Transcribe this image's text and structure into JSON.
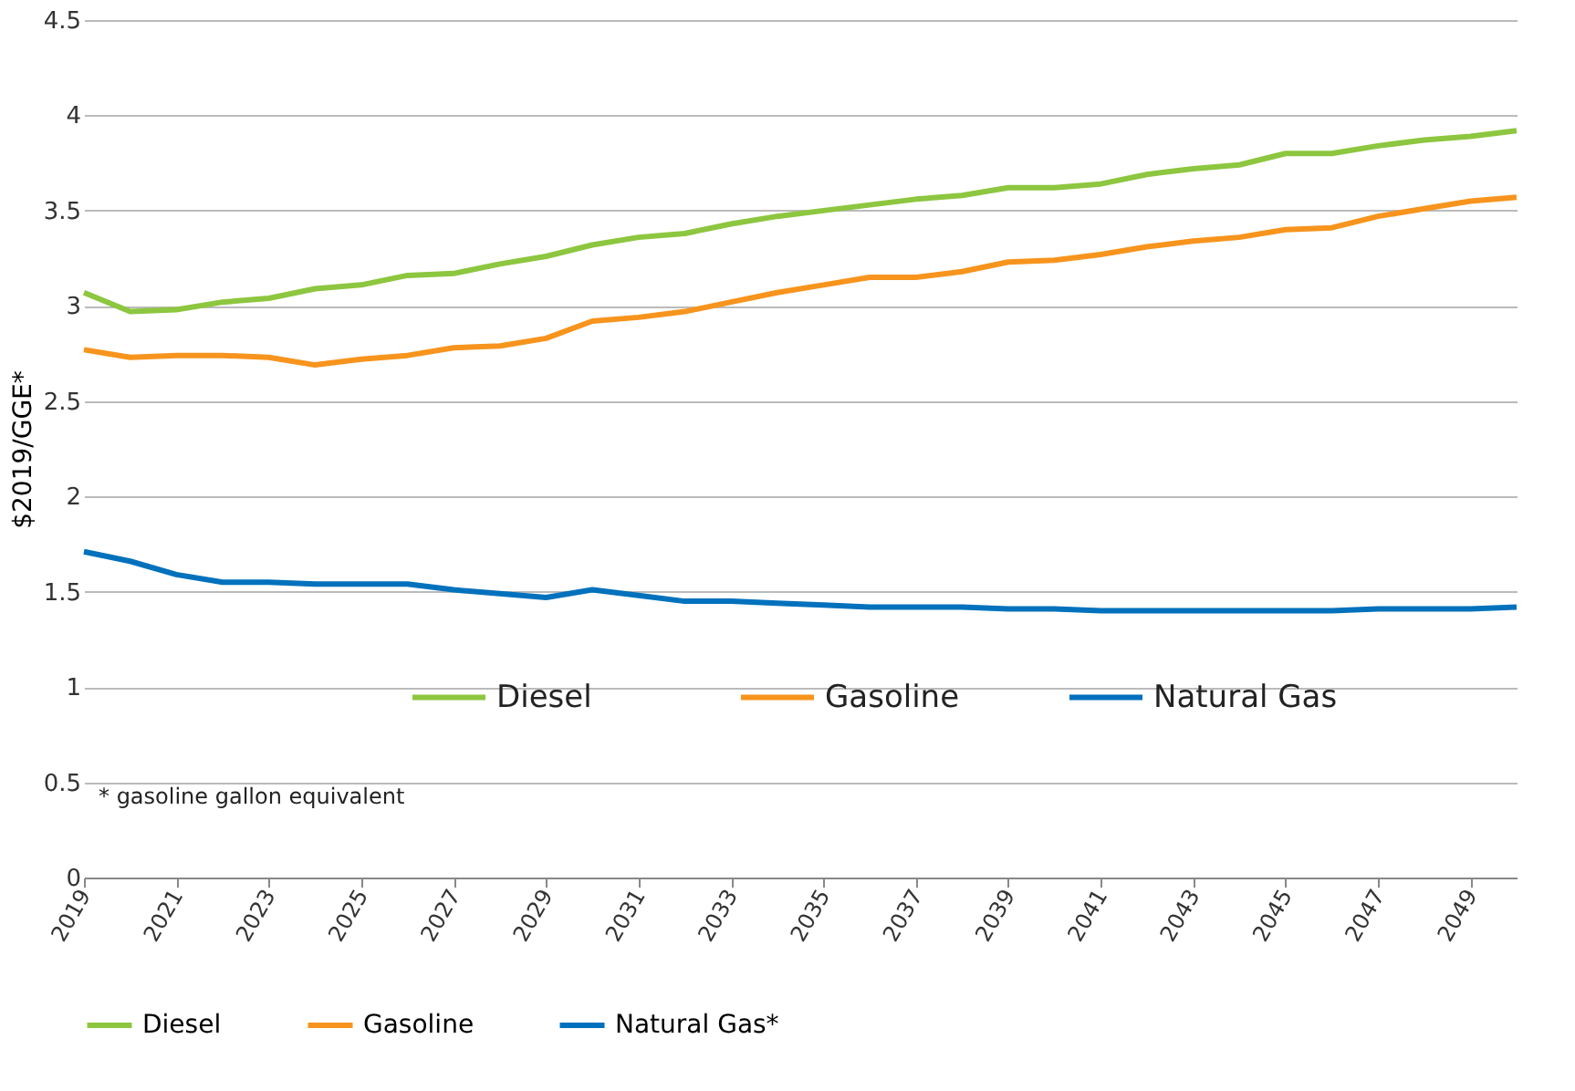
{
  "chart_data": {
    "type": "line",
    "ylabel": "$2019/GGE*",
    "x": [
      2019,
      2020,
      2021,
      2022,
      2023,
      2024,
      2025,
      2026,
      2027,
      2028,
      2029,
      2030,
      2031,
      2032,
      2033,
      2034,
      2035,
      2036,
      2037,
      2038,
      2039,
      2040,
      2041,
      2042,
      2043,
      2044,
      2045,
      2046,
      2047,
      2048,
      2049,
      2050
    ],
    "series": [
      {
        "name": "Diesel",
        "color": "#8dc63f",
        "values": [
          3.07,
          2.97,
          2.98,
          3.02,
          3.04,
          3.09,
          3.11,
          3.16,
          3.17,
          3.22,
          3.26,
          3.32,
          3.36,
          3.38,
          3.43,
          3.47,
          3.5,
          3.53,
          3.56,
          3.58,
          3.62,
          3.62,
          3.64,
          3.69,
          3.72,
          3.74,
          3.8,
          3.8,
          3.84,
          3.87,
          3.89,
          3.92
        ]
      },
      {
        "name": "Gasoline",
        "color": "#f7941d",
        "values": [
          2.77,
          2.73,
          2.74,
          2.74,
          2.73,
          2.69,
          2.72,
          2.74,
          2.78,
          2.79,
          2.83,
          2.92,
          2.94,
          2.97,
          3.02,
          3.07,
          3.11,
          3.15,
          3.15,
          3.18,
          3.23,
          3.24,
          3.27,
          3.31,
          3.34,
          3.36,
          3.4,
          3.41,
          3.47,
          3.51,
          3.55,
          3.57
        ]
      },
      {
        "name": "Natural Gas*",
        "color": "#0071bc",
        "values": [
          1.71,
          1.66,
          1.59,
          1.55,
          1.55,
          1.54,
          1.54,
          1.54,
          1.51,
          1.49,
          1.47,
          1.51,
          1.48,
          1.45,
          1.45,
          1.44,
          1.43,
          1.42,
          1.42,
          1.42,
          1.41,
          1.41,
          1.4,
          1.4,
          1.4,
          1.4,
          1.4,
          1.4,
          1.41,
          1.41,
          1.41,
          1.42
        ]
      }
    ],
    "xlim": [
      2019,
      2050
    ],
    "xticks": [
      2019,
      2021,
      2023,
      2025,
      2027,
      2029,
      2031,
      2033,
      2035,
      2037,
      2039,
      2041,
      2043,
      2045,
      2047,
      2049
    ],
    "ylim": [
      0,
      4.5
    ],
    "yticks": [
      0,
      0.5,
      1,
      1.5,
      2,
      2.5,
      3,
      3.5,
      4,
      4.5
    ],
    "grid": "y",
    "legend": "bottom",
    "marker": "none",
    "line_style": "solid",
    "annotations": [
      "Diesel",
      "Gasoline",
      "Natural Gas",
      "* gasoline gallon equivalent"
    ]
  }
}
